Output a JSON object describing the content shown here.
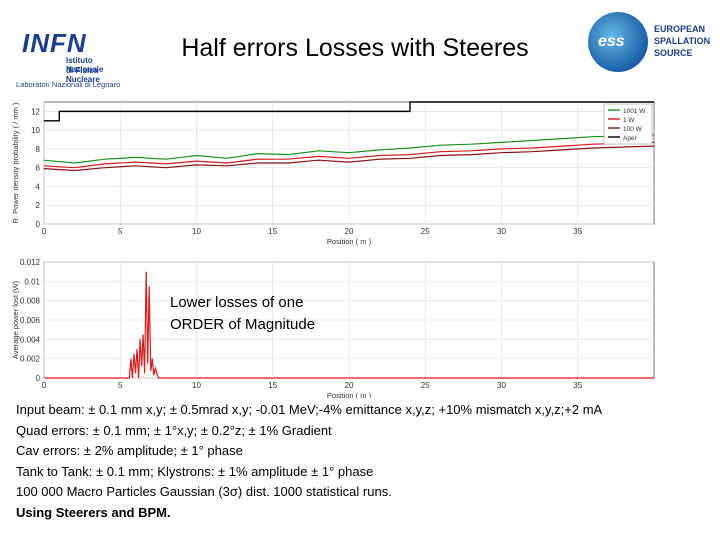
{
  "header": {
    "infn_logo_text": "INFN",
    "infn_line1": "Istituto Nazionale",
    "infn_line2": "di Fisica Nucleare",
    "infn_line3": "Laboratori Nazionali di Legnaro",
    "title": "Half errors Losses with Steeres",
    "ess_logo_text": "ess",
    "ess_line1": "EUROPEAN",
    "ess_line2": "SPALLATION",
    "ess_line3": "SOURCE"
  },
  "overlay": {
    "line1": "Lower losses of one",
    "line2": "ORDER of Magnitude"
  },
  "body": {
    "line1": "Input beam: ± 0.1 mm x,y; ± 0.5mrad x,y; -0.01 MeV;-4% emittance x,y,z; +10% mismatch x,y,z;+2 mA",
    "line2": "Quad errors: ± 0.1 mm; ± 1°x,y; ± 0.2°z; ± 1% Gradient",
    "line3": "Cav errors: ± 2% amplitude; ± 1° phase",
    "line4": "Tank to Tank: ± 0.1 mm; Klystrons: ± 1% amplitude ± 1° phase",
    "line5": "100 000 Macro Particles Gaussian (3σ) dist. 1000 statistical runs.",
    "line6": "Using Steerers and BPM."
  },
  "chart_data": [
    {
      "type": "line",
      "ylabel": "R. Power density probability ( / mm )",
      "xlabel": "Position ( m )",
      "xlim": [
        0,
        40
      ],
      "ylim": [
        0,
        13
      ],
      "xticks": [
        0,
        5,
        10,
        15,
        20,
        25,
        30,
        35
      ],
      "yticks": [
        0,
        2,
        4,
        6,
        8,
        10,
        12
      ],
      "legend_placement": "top-right",
      "legend": [
        "1001 W",
        "1 W",
        "100 W",
        "Aper"
      ],
      "colors": [
        "#1f8f1f",
        "#d81b1b",
        "#8a1212",
        "#000000"
      ],
      "aperture": {
        "x": [
          0,
          1,
          1,
          24,
          24,
          40
        ],
        "y": [
          11,
          11,
          12,
          12,
          13,
          13
        ]
      },
      "series": [
        {
          "name": "1001 W",
          "x": [
            0,
            2,
            4,
            6,
            8,
            10,
            12,
            14,
            16,
            18,
            20,
            22,
            24,
            26,
            28,
            30,
            32,
            34,
            36,
            38,
            40
          ],
          "y": [
            6.8,
            6.5,
            6.9,
            7.1,
            6.9,
            7.3,
            7.0,
            7.5,
            7.4,
            7.8,
            7.6,
            7.9,
            8.1,
            8.4,
            8.5,
            8.7,
            8.9,
            9.1,
            9.3,
            9.4,
            9.5
          ]
        },
        {
          "name": "1 W",
          "x": [
            0,
            2,
            4,
            6,
            8,
            10,
            12,
            14,
            16,
            18,
            20,
            22,
            24,
            26,
            28,
            30,
            32,
            34,
            36,
            38,
            40
          ],
          "y": [
            6.2,
            6.0,
            6.4,
            6.6,
            6.4,
            6.7,
            6.5,
            6.9,
            6.9,
            7.2,
            7.0,
            7.3,
            7.4,
            7.7,
            7.8,
            8.0,
            8.1,
            8.3,
            8.5,
            8.6,
            8.7
          ]
        },
        {
          "name": "100 W",
          "x": [
            0,
            2,
            4,
            6,
            8,
            10,
            12,
            14,
            16,
            18,
            20,
            22,
            24,
            26,
            28,
            30,
            32,
            34,
            36,
            38,
            40
          ],
          "y": [
            5.9,
            5.7,
            6.0,
            6.2,
            6.0,
            6.3,
            6.2,
            6.5,
            6.5,
            6.8,
            6.6,
            6.9,
            7.0,
            7.3,
            7.4,
            7.6,
            7.7,
            7.9,
            8.1,
            8.2,
            8.3
          ]
        }
      ]
    },
    {
      "type": "line",
      "ylabel": "Average power lost (W)",
      "xlabel": "Position ( m )",
      "xlim": [
        0,
        40
      ],
      "ylim": [
        0,
        0.012
      ],
      "xticks": [
        0,
        5,
        10,
        15,
        20,
        25,
        30,
        35
      ],
      "yticks": [
        0,
        0.002,
        0.004,
        0.006,
        0.008,
        0.01,
        0.012
      ],
      "ytick_labels": [
        "0",
        "0.002",
        "0.004",
        "0.006",
        "0.008",
        "0.01",
        "0.012"
      ],
      "colors": [
        "#d81b1b"
      ],
      "series": [
        {
          "x": [
            0,
            5.0,
            5.6,
            5.7,
            5.8,
            5.9,
            6.0,
            6.1,
            6.2,
            6.3,
            6.4,
            6.5,
            6.6,
            6.7,
            6.8,
            6.9,
            7.0,
            7.1,
            7.2,
            7.3,
            7.5,
            40
          ],
          "y": [
            0,
            0,
            0,
            0.002,
            0,
            0.0025,
            0.0005,
            0.003,
            0,
            0.004,
            0.0012,
            0.0045,
            0.0005,
            0.011,
            0.0015,
            0.0095,
            0.0007,
            0.002,
            0.0003,
            0.001,
            0,
            0
          ]
        }
      ]
    }
  ]
}
